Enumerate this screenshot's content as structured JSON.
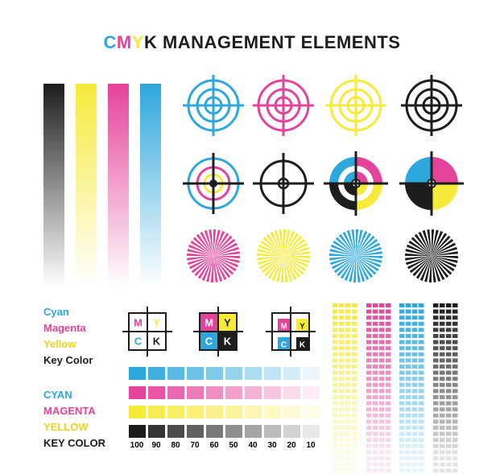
{
  "title": {
    "c": "C",
    "m": "M",
    "y": "Y",
    "k": "K",
    "rest": " MANAGEMENT ELEMENTS"
  },
  "colors": {
    "cyan": "#2ea7dc",
    "magenta": "#e4439a",
    "yellow": "#f6ea3a",
    "key": "#1d1d1d"
  },
  "legend_small": [
    "Cyan",
    "Magenta",
    "Yellow",
    "Key Color"
  ],
  "legend_caps": [
    "CYAN",
    "MAGENTA",
    "YELLOW",
    "KEY COLOR"
  ],
  "boxes": [
    {
      "m": "M",
      "y": "Y",
      "c": "C",
      "k": "K"
    },
    {
      "m": "M",
      "y": "Y",
      "c": "C",
      "k": "K"
    },
    {
      "m": "M",
      "y": "Y",
      "c": "C",
      "k": "K"
    }
  ],
  "scale_percents": [
    "100",
    "90",
    "80",
    "70",
    "60",
    "50",
    "40",
    "30",
    "20",
    "10"
  ]
}
